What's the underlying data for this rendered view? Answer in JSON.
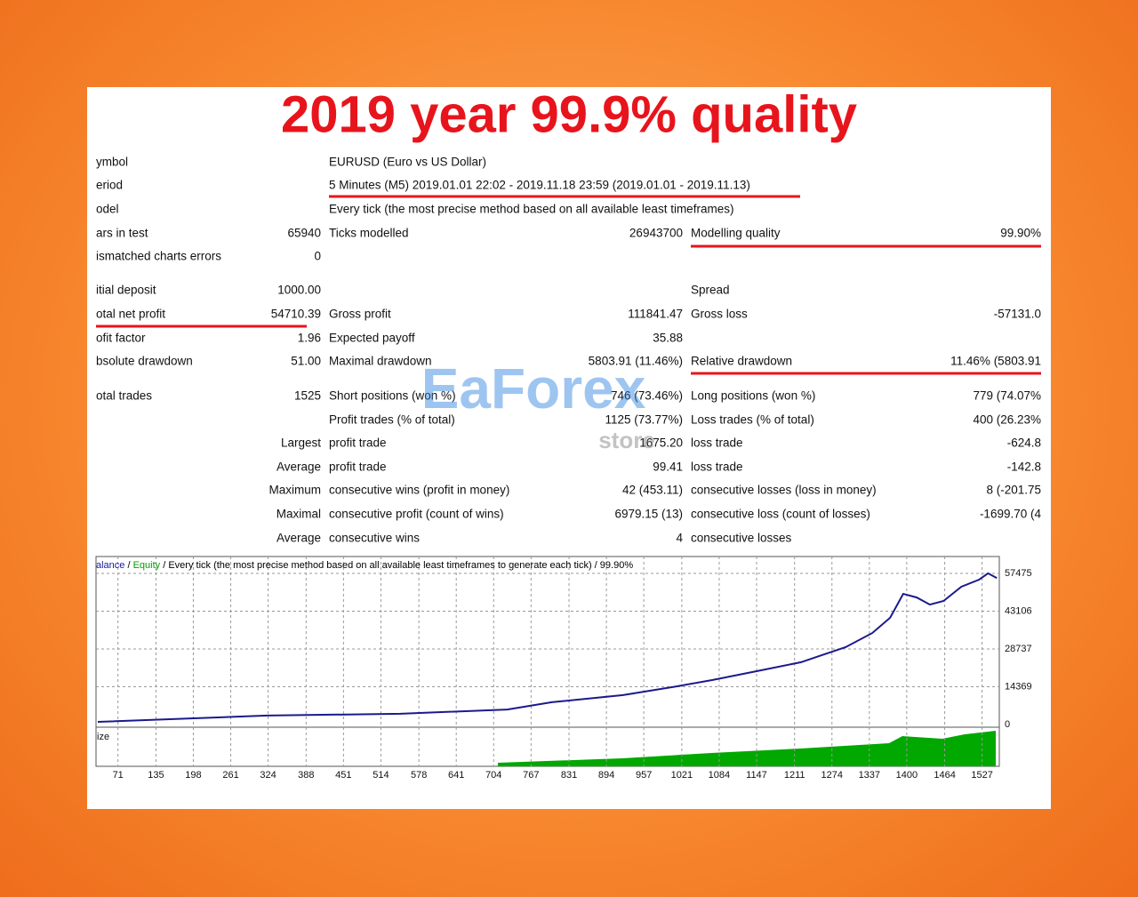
{
  "title": "2019 year 99.9% quality",
  "report": {
    "rows": [
      {
        "label": "ymbol",
        "label2": "EURUSD (Euro vs US Dollar)"
      },
      {
        "label": "eriod",
        "label2": "5 Minutes (M5) 2019.01.01 22:02 - 2019.11.18 23:59 (2019.01.01 - 2019.11.13)"
      },
      {
        "label": "odel",
        "label2": "Every tick (the most precise method based on all available least timeframes)"
      },
      {
        "label": "ars in test",
        "value": "65940",
        "label2": "Ticks modelled",
        "value2": "26943700",
        "label3": "Modelling quality",
        "value3": "99.90%"
      },
      {
        "label": "ismatched charts errors",
        "value": "0"
      },
      {
        "label": "itial deposit",
        "value": "1000.00",
        "label3": "Spread"
      },
      {
        "label": "otal net profit",
        "value": "54710.39",
        "label2": "Gross profit",
        "value2": "111841.47",
        "label3": "Gross loss",
        "value3": "-57131.0"
      },
      {
        "label": "ofit factor",
        "value": "1.96",
        "label2": "Expected payoff",
        "value2": "35.88"
      },
      {
        "label": "bsolute drawdown",
        "value": "51.00",
        "label2": "Maximal drawdown",
        "value2": "5803.91 (11.46%)",
        "label3": "Relative drawdown",
        "value3": "11.46% (5803.91"
      },
      {
        "label": "otal trades",
        "value": "1525",
        "label2": "Short positions (won %)",
        "value2": "746 (73.46%)",
        "label3": "Long positions (won %)",
        "value3": "779 (74.07%"
      },
      {
        "label2": "Profit trades (% of total)",
        "value2": "1125 (73.77%)",
        "label3": "Loss trades (% of total)",
        "value3": "400 (26.23%"
      },
      {
        "value": "Largest",
        "label2": "profit trade",
        "value2": "1675.20",
        "label3": "loss trade",
        "value3": "-624.8"
      },
      {
        "value": "Average",
        "label2": "profit trade",
        "value2": "99.41",
        "label3": "loss trade",
        "value3": "-142.8"
      },
      {
        "value": "Maximum",
        "label2": "consecutive wins (profit in money)",
        "value2": "42 (453.11)",
        "label3": "consecutive losses (loss in money)",
        "value3": "8 (-201.75"
      },
      {
        "value": "Maximal",
        "label2": "consecutive profit (count of wins)",
        "value2": "6979.15 (13)",
        "label3": "consecutive loss (count of losses)",
        "value3": "-1699.70 (4"
      },
      {
        "value": "Average",
        "label2": "consecutive wins",
        "value2": "4",
        "label3": "consecutive losses"
      }
    ]
  },
  "watermark": {
    "brand": "EaForex",
    "sub": "store"
  },
  "chart": {
    "legend": [
      {
        "text": "alance",
        "color": "#1a1aa0"
      },
      {
        "text": " / ",
        "color": "#000000"
      },
      {
        "text": "Equity",
        "color": "#00a000"
      },
      {
        "text": " / Every tick (the most precise method based on all available least timeframes to generate each tick) / 99.90%",
        "color": "#000000"
      }
    ],
    "volume_label": "ize",
    "line_color": "#1a1a8c",
    "volume_color": "#00a800",
    "x": [
      37,
      322,
      547,
      727,
      802,
      922,
      1012,
      1072,
      1147,
      1222,
      1252,
      1297,
      1342,
      1372,
      1394,
      1417,
      1439,
      1462,
      1492,
      1522,
      1537,
      1552
    ],
    "balance": [
      1000,
      3400,
      4100,
      5700,
      8500,
      11200,
      14500,
      16900,
      20300,
      23700,
      26000,
      29400,
      34800,
      40600,
      49700,
      48300,
      45600,
      47000,
      52400,
      55100,
      57500,
      55710
    ],
    "xlim": [
      34,
      1556
    ],
    "ylim": [
      0,
      63900
    ],
    "xticks": [
      71,
      135,
      198,
      261,
      324,
      388,
      451,
      514,
      578,
      641,
      704,
      767,
      831,
      894,
      957,
      1021,
      1084,
      1147,
      1211,
      1274,
      1337,
      1400,
      1464,
      1527
    ],
    "yticks": [
      0,
      14369,
      28737,
      43106,
      57475
    ],
    "grid": true
  }
}
